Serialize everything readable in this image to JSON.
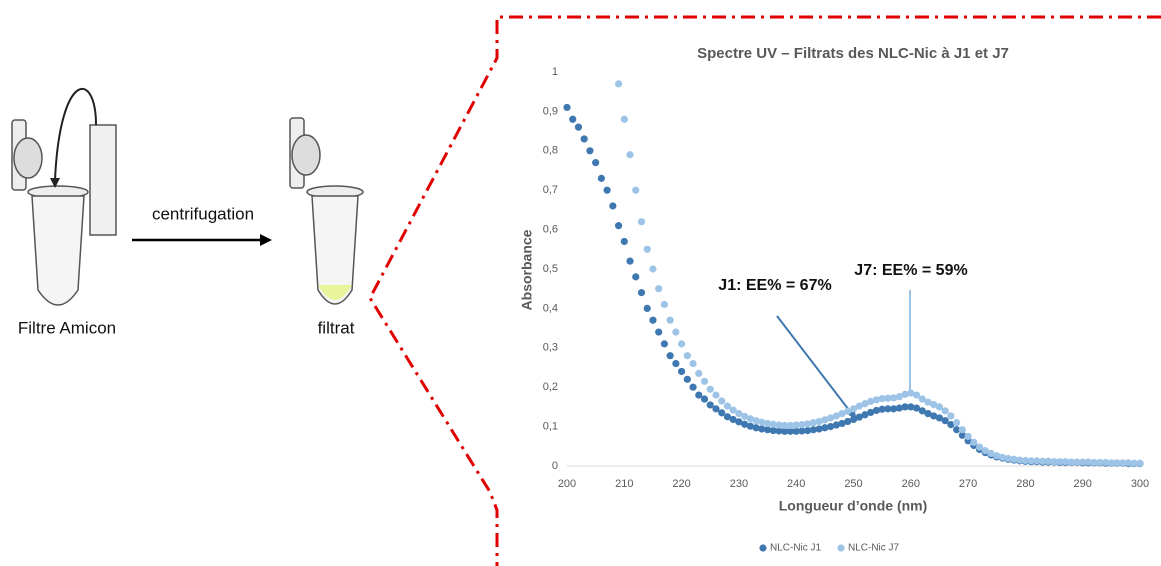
{
  "diagram": {
    "labels": [
      "Filtre Amicon",
      "centrifugation",
      "filtrat"
    ]
  },
  "chart_data": {
    "type": "scatter",
    "title": "Spectre UV – Filtrats des NLC-Nic à J1 et J7",
    "xlabel": "Longueur d’onde (nm)",
    "ylabel": "Absorbance",
    "annotations": [
      "J1: EE% = 67%",
      "J7: EE% = 59%"
    ],
    "x": [
      200,
      201,
      202,
      203,
      204,
      205,
      206,
      207,
      208,
      209,
      210,
      211,
      212,
      213,
      214,
      215,
      216,
      217,
      218,
      219,
      220,
      221,
      222,
      223,
      224,
      225,
      226,
      227,
      228,
      229,
      230,
      231,
      232,
      233,
      234,
      235,
      236,
      237,
      238,
      239,
      240,
      241,
      242,
      243,
      244,
      245,
      246,
      247,
      248,
      249,
      250,
      251,
      252,
      253,
      254,
      255,
      256,
      257,
      258,
      259,
      260,
      261,
      262,
      263,
      264,
      265,
      266,
      267,
      268,
      269,
      270,
      271,
      272,
      273,
      274,
      275,
      276,
      277,
      278,
      279,
      280,
      281,
      282,
      283,
      284,
      285,
      286,
      287,
      288,
      289,
      290,
      291,
      292,
      293,
      294,
      295,
      296,
      297,
      298,
      299,
      300
    ],
    "series": [
      {
        "name": "NLC-Nic J1",
        "color": "#3f78b0",
        "values": [
          0.91,
          0.88,
          0.86,
          0.83,
          0.8,
          0.77,
          0.73,
          0.7,
          0.66,
          0.61,
          0.57,
          0.52,
          0.48,
          0.44,
          0.4,
          0.37,
          0.34,
          0.31,
          0.28,
          0.26,
          0.24,
          0.22,
          0.2,
          0.18,
          0.17,
          0.155,
          0.145,
          0.135,
          0.125,
          0.118,
          0.112,
          0.106,
          0.101,
          0.097,
          0.094,
          0.092,
          0.09,
          0.089,
          0.088,
          0.088,
          0.088,
          0.089,
          0.09,
          0.092,
          0.094,
          0.097,
          0.1,
          0.104,
          0.108,
          0.113,
          0.118,
          0.124,
          0.13,
          0.136,
          0.141,
          0.144,
          0.145,
          0.145,
          0.147,
          0.15,
          0.15,
          0.147,
          0.14,
          0.133,
          0.127,
          0.122,
          0.115,
          0.105,
          0.092,
          0.078,
          0.064,
          0.052,
          0.042,
          0.034,
          0.028,
          0.023,
          0.02,
          0.017,
          0.015,
          0.013,
          0.012,
          0.011,
          0.011,
          0.01,
          0.01,
          0.01,
          0.009,
          0.009,
          0.009,
          0.009,
          0.008,
          0.008,
          0.008,
          0.008,
          0.007,
          0.007,
          0.007,
          0.007,
          0.006,
          0.006,
          0.006
        ]
      },
      {
        "name": "NLC-Nic J7",
        "color": "#9dc3e6",
        "values": [
          null,
          null,
          null,
          null,
          null,
          null,
          null,
          null,
          null,
          0.97,
          0.88,
          0.79,
          0.7,
          0.62,
          0.55,
          0.5,
          0.45,
          0.41,
          0.37,
          0.34,
          0.31,
          0.28,
          0.26,
          0.235,
          0.215,
          0.195,
          0.18,
          0.165,
          0.152,
          0.142,
          0.133,
          0.126,
          0.12,
          0.115,
          0.111,
          0.108,
          0.106,
          0.104,
          0.103,
          0.103,
          0.104,
          0.105,
          0.107,
          0.11,
          0.113,
          0.117,
          0.122,
          0.127,
          0.133,
          0.139,
          0.145,
          0.152,
          0.158,
          0.164,
          0.168,
          0.171,
          0.172,
          0.173,
          0.176,
          0.182,
          0.185,
          0.18,
          0.17,
          0.162,
          0.156,
          0.15,
          0.14,
          0.127,
          0.11,
          0.092,
          0.075,
          0.06,
          0.048,
          0.039,
          0.032,
          0.026,
          0.022,
          0.019,
          0.017,
          0.015,
          0.014,
          0.013,
          0.013,
          0.012,
          0.012,
          0.011,
          0.011,
          0.011,
          0.01,
          0.01,
          0.01,
          0.01,
          0.009,
          0.009,
          0.009,
          0.008,
          0.008,
          0.008,
          0.008,
          0.007,
          0.007
        ]
      }
    ],
    "xlim": [
      200,
      300
    ],
    "xticks": [
      200,
      210,
      220,
      230,
      240,
      250,
      260,
      270,
      280,
      290,
      300
    ],
    "ylim": [
      0,
      1
    ],
    "yticks": [
      0,
      {
        "value": 0.1,
        "label": "0,1"
      },
      {
        "value": 0.2,
        "label": "0,2"
      },
      {
        "value": 0.3,
        "label": "0,3"
      },
      {
        "value": 0.4,
        "label": "0,4"
      },
      {
        "value": 0.5,
        "label": "0,5"
      },
      {
        "value": 0.6,
        "label": "0,6"
      },
      {
        "value": 0.7,
        "label": "0,7"
      },
      {
        "value": 0.8,
        "label": "0,8"
      },
      {
        "value": 0.9,
        "label": "0,9"
      },
      1
    ],
    "grid": false,
    "legend": "bottom"
  }
}
